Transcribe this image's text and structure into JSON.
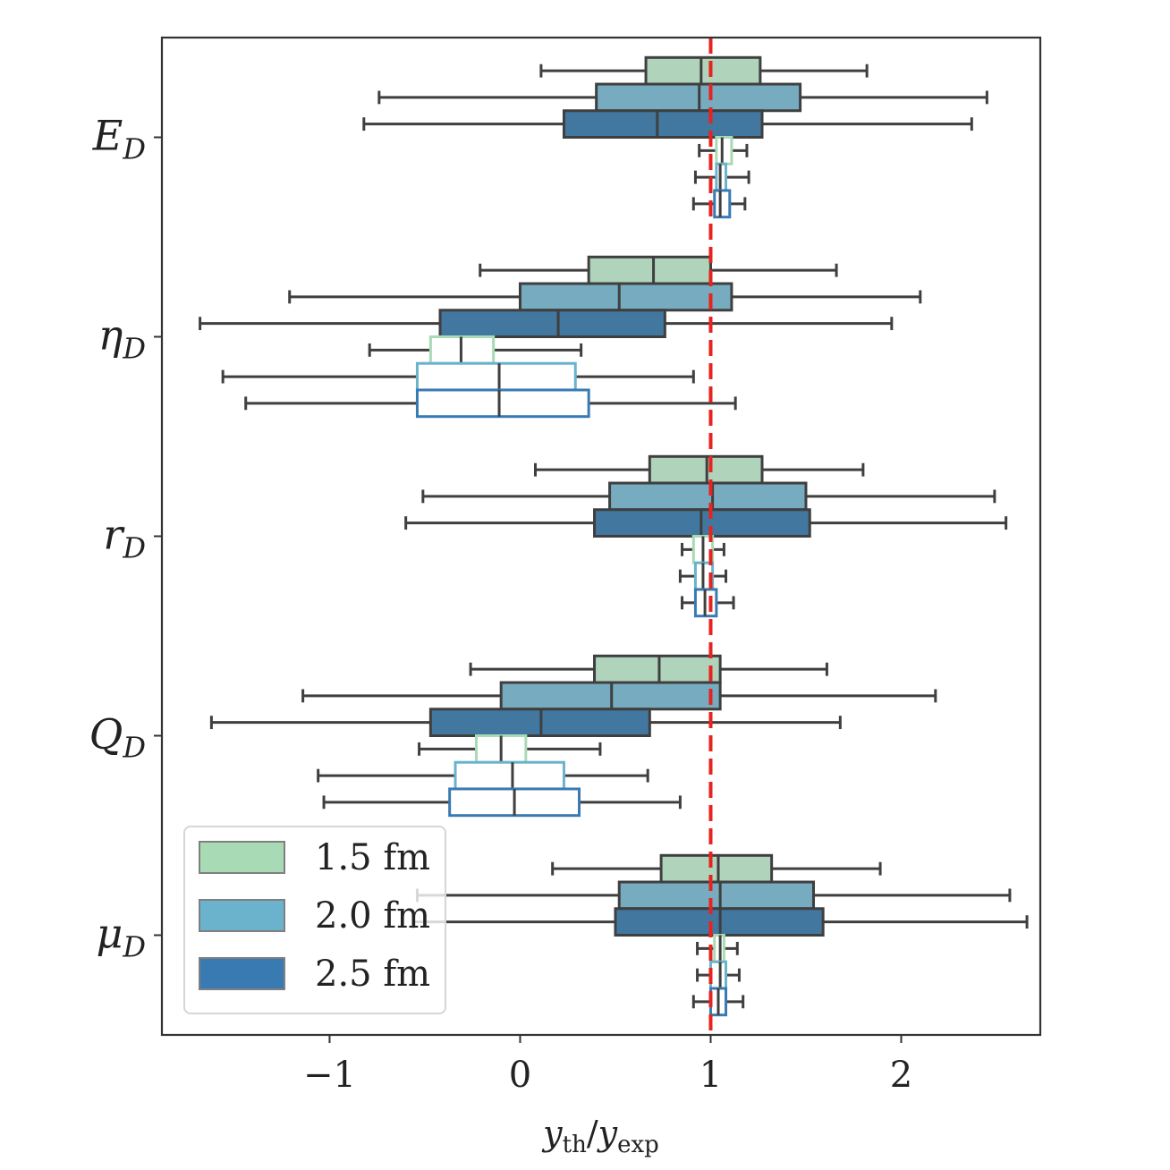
{
  "chart_data": {
    "type": "boxplot",
    "orientation": "horizontal",
    "title": "",
    "xlabel": "y_th/y_exp",
    "xlabel_parts": {
      "main": "y",
      "sub1": "th",
      "slash": "/",
      "main2": "y",
      "sub2": "exp"
    },
    "ylabel": "",
    "xlim": [
      -1.88,
      2.73
    ],
    "xticks": [
      -1,
      0,
      1,
      2
    ],
    "xtick_labels": [
      "−1",
      "0",
      "1",
      "2"
    ],
    "reference_line": {
      "x": 1,
      "style": "dashed",
      "color": "#e8231f"
    },
    "categories": [
      {
        "label": "E",
        "sub": "D"
      },
      {
        "label": "η",
        "sub": "D"
      },
      {
        "label": "r",
        "sub": "D"
      },
      {
        "label": "Q",
        "sub": "D"
      },
      {
        "label": "μ",
        "sub": "D"
      }
    ],
    "legend": {
      "placement": "lower-left",
      "entries": [
        {
          "label": "1.5 fm",
          "color": "#a8dab5"
        },
        {
          "label": "2.0 fm",
          "color": "#6bb3cc"
        },
        {
          "label": "2.5 fm",
          "color": "#3a7ab3"
        }
      ]
    },
    "box_colors": {
      "filled": [
        "#b0d3bb",
        "#77abbf",
        "#42779f"
      ],
      "outline": [
        "#a8dab5",
        "#6bb3cc",
        "#3a7ab3"
      ],
      "edge": "#3f3f3f"
    },
    "series": [
      {
        "name": "1.5 fm",
        "style": "filled",
        "stats": [
          {
            "whislo": 0.11,
            "q1": 0.66,
            "med": 0.95,
            "q3": 1.26,
            "whishi": 1.82
          },
          {
            "whislo": -0.21,
            "q1": 0.36,
            "med": 0.7,
            "q3": 1.0,
            "whishi": 1.66
          },
          {
            "whislo": 0.08,
            "q1": 0.68,
            "med": 0.98,
            "q3": 1.27,
            "whishi": 1.8
          },
          {
            "whislo": -0.26,
            "q1": 0.39,
            "med": 0.73,
            "q3": 1.05,
            "whishi": 1.61
          },
          {
            "whislo": 0.17,
            "q1": 0.74,
            "med": 1.04,
            "q3": 1.32,
            "whishi": 1.89
          }
        ]
      },
      {
        "name": "2.0 fm",
        "style": "filled",
        "stats": [
          {
            "whislo": -0.74,
            "q1": 0.4,
            "med": 0.94,
            "q3": 1.47,
            "whishi": 2.45
          },
          {
            "whislo": -1.21,
            "q1": 0.0,
            "med": 0.52,
            "q3": 1.11,
            "whishi": 2.1
          },
          {
            "whislo": -0.51,
            "q1": 0.47,
            "med": 1.01,
            "q3": 1.5,
            "whishi": 2.49
          },
          {
            "whislo": -1.14,
            "q1": -0.1,
            "med": 0.48,
            "q3": 1.05,
            "whishi": 2.18
          },
          {
            "whislo": -0.54,
            "q1": 0.52,
            "med": 1.05,
            "q3": 1.54,
            "whishi": 2.57
          }
        ]
      },
      {
        "name": "2.5 fm",
        "style": "filled",
        "stats": [
          {
            "whislo": -0.82,
            "q1": 0.23,
            "med": 0.72,
            "q3": 1.27,
            "whishi": 2.37
          },
          {
            "whislo": -1.68,
            "q1": -0.42,
            "med": 0.2,
            "q3": 0.76,
            "whishi": 1.95
          },
          {
            "whislo": -0.6,
            "q1": 0.39,
            "med": 0.95,
            "q3": 1.52,
            "whishi": 2.55
          },
          {
            "whislo": -1.62,
            "q1": -0.47,
            "med": 0.11,
            "q3": 0.68,
            "whishi": 1.68
          },
          {
            "whislo": -0.56,
            "q1": 0.5,
            "med": 1.05,
            "q3": 1.59,
            "whishi": 2.66
          }
        ]
      },
      {
        "name": "1.5 fm",
        "style": "outline",
        "stats": [
          {
            "whislo": 0.94,
            "q1": 1.03,
            "med": 1.06,
            "q3": 1.11,
            "whishi": 1.19
          },
          {
            "whislo": -0.79,
            "q1": -0.47,
            "med": -0.31,
            "q3": -0.14,
            "whishi": 0.32
          },
          {
            "whislo": 0.85,
            "q1": 0.91,
            "med": 0.96,
            "q3": 1.01,
            "whishi": 1.07
          },
          {
            "whislo": -0.53,
            "q1": -0.23,
            "med": -0.1,
            "q3": 0.03,
            "whishi": 0.42
          },
          {
            "whislo": 0.93,
            "q1": 1.02,
            "med": 1.05,
            "q3": 1.07,
            "whishi": 1.14
          }
        ]
      },
      {
        "name": "2.0 fm",
        "style": "outline",
        "stats": [
          {
            "whislo": 0.92,
            "q1": 1.03,
            "med": 1.05,
            "q3": 1.08,
            "whishi": 1.2
          },
          {
            "whislo": -1.56,
            "q1": -0.54,
            "med": -0.11,
            "q3": 0.29,
            "whishi": 0.91
          },
          {
            "whislo": 0.84,
            "q1": 0.92,
            "med": 0.96,
            "q3": 1.01,
            "whishi": 1.08
          },
          {
            "whislo": -1.06,
            "q1": -0.34,
            "med": -0.04,
            "q3": 0.23,
            "whishi": 0.67
          },
          {
            "whislo": 0.93,
            "q1": 1.0,
            "med": 1.05,
            "q3": 1.08,
            "whishi": 1.15
          }
        ]
      },
      {
        "name": "2.5 fm",
        "style": "outline",
        "stats": [
          {
            "whislo": 0.91,
            "q1": 1.02,
            "med": 1.05,
            "q3": 1.1,
            "whishi": 1.18
          },
          {
            "whislo": -1.44,
            "q1": -0.54,
            "med": -0.11,
            "q3": 0.36,
            "whishi": 1.13
          },
          {
            "whislo": 0.85,
            "q1": 0.92,
            "med": 0.97,
            "q3": 1.03,
            "whishi": 1.12
          },
          {
            "whislo": -1.03,
            "q1": -0.37,
            "med": -0.03,
            "q3": 0.31,
            "whishi": 0.84
          },
          {
            "whislo": 0.91,
            "q1": 1.0,
            "med": 1.04,
            "q3": 1.08,
            "whishi": 1.17
          }
        ]
      }
    ]
  }
}
